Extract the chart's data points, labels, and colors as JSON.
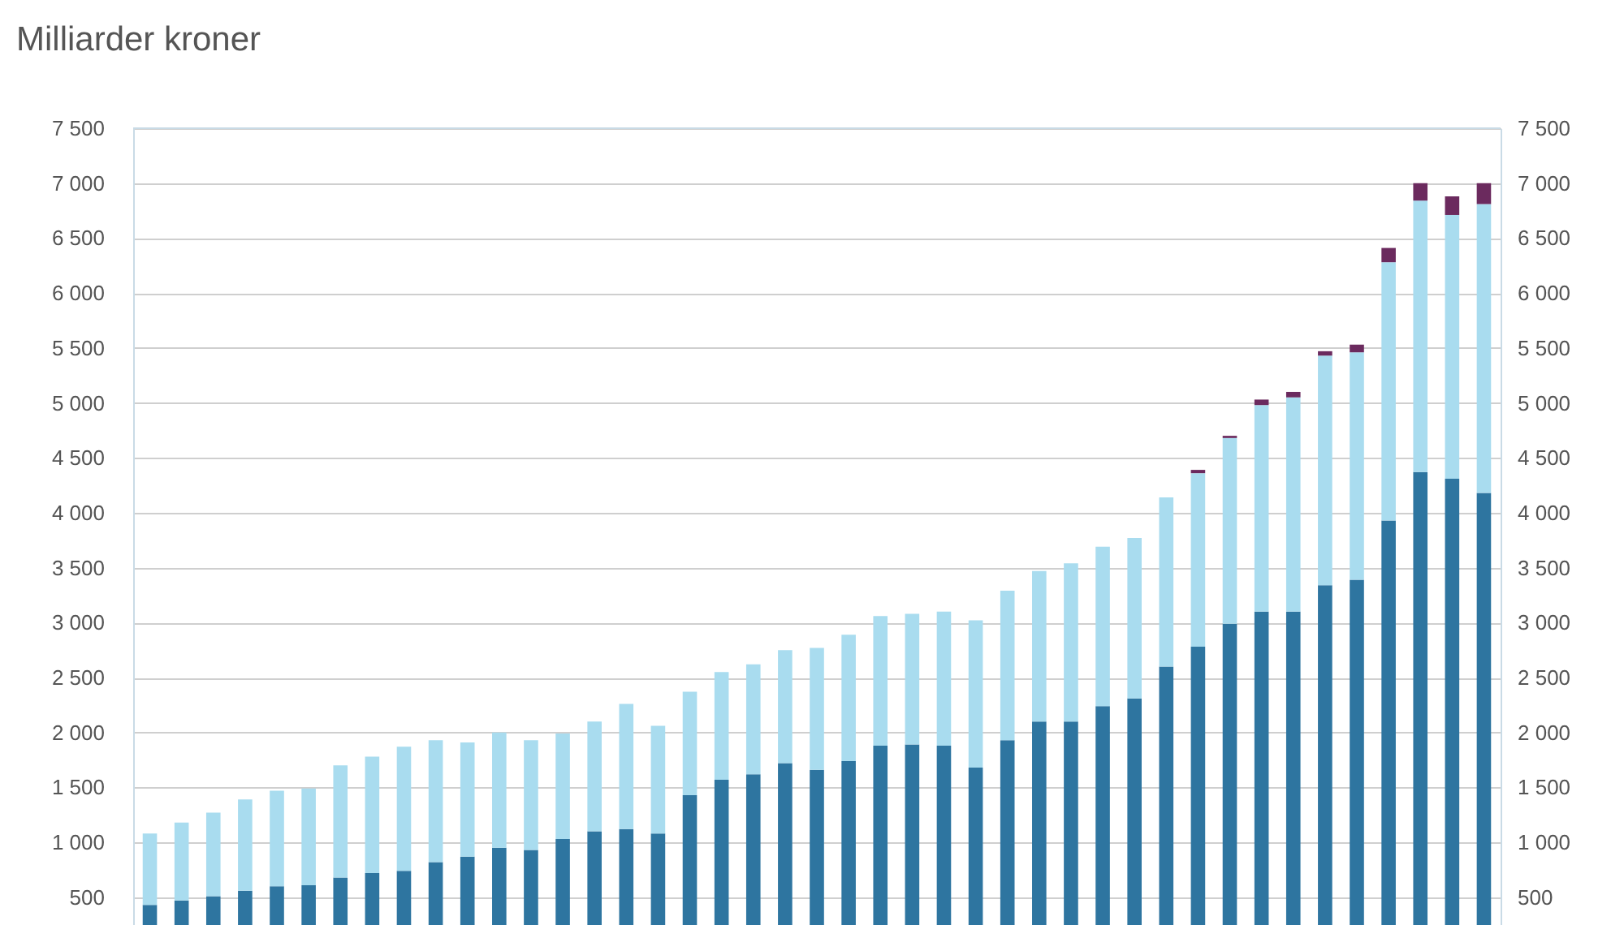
{
  "chart_data": {
    "type": "bar",
    "title": "Milliarder kroner",
    "stacked": true,
    "categories": [
      null,
      null,
      null,
      null,
      null,
      null,
      null,
      null,
      null,
      null,
      null,
      null,
      null,
      null,
      null,
      null,
      null,
      null,
      null,
      null,
      null,
      null,
      null,
      null,
      null,
      null,
      null,
      null,
      null,
      null,
      null,
      null,
      null,
      null,
      null,
      null,
      null,
      null,
      null,
      null,
      null,
      null,
      null
    ],
    "series": [
      {
        "color": "#2e75a0",
        "values": [
          430,
          470,
          510,
          560,
          600,
          610,
          680,
          720,
          740,
          820,
          870,
          950,
          930,
          1030,
          1100,
          1120,
          1080,
          1430,
          1570,
          1620,
          1720,
          1660,
          1740,
          1880,
          1890,
          1880,
          1680,
          1930,
          2100,
          2100,
          2240,
          2310,
          2600,
          2780,
          2990,
          3100,
          3100,
          3340,
          3390,
          3930,
          4370,
          4310,
          4180
        ]
      },
      {
        "color": "#a9dcef",
        "values": [
          650,
          710,
          760,
          830,
          870,
          880,
          1020,
          1060,
          1130,
          1110,
          1040,
          1050,
          1000,
          960,
          1000,
          1140,
          980,
          940,
          980,
          1000,
          1030,
          1110,
          1150,
          1180,
          1190,
          1220,
          1340,
          1360,
          1370,
          1440,
          1450,
          1460,
          1540,
          1580,
          1690,
          1880,
          1950,
          2090,
          2070,
          2350,
          2470,
          2400,
          2630
        ]
      },
      {
        "color": "#6b2a5e",
        "values": [
          null,
          null,
          null,
          null,
          null,
          null,
          null,
          null,
          null,
          null,
          null,
          null,
          null,
          null,
          null,
          null,
          null,
          null,
          null,
          null,
          null,
          null,
          null,
          null,
          null,
          null,
          null,
          null,
          null,
          null,
          null,
          null,
          null,
          30,
          20,
          50,
          50,
          40,
          70,
          130,
          160,
          170,
          190
        ]
      }
    ],
    "ylim": [
      0,
      7500
    ],
    "yticks": [
      {
        "value": 500,
        "label": "500"
      },
      {
        "value": 1000,
        "label": "1 000"
      },
      {
        "value": 1500,
        "label": "1 500"
      },
      {
        "value": 2000,
        "label": "2 000"
      },
      {
        "value": 2500,
        "label": "2 500"
      },
      {
        "value": 3000,
        "label": "3 000"
      },
      {
        "value": 3500,
        "label": "3 500"
      },
      {
        "value": 4000,
        "label": "4 000"
      },
      {
        "value": 4500,
        "label": "4 500"
      },
      {
        "value": 5000,
        "label": "5 000"
      },
      {
        "value": 5500,
        "label": "5 500"
      },
      {
        "value": 6000,
        "label": "6 000"
      },
      {
        "value": 6500,
        "label": "6 500"
      },
      {
        "value": 7000,
        "label": "7 000"
      },
      {
        "value": 7500,
        "label": "7 500"
      }
    ],
    "y2lim": [
      0,
      7500
    ],
    "y2ticks": [
      {
        "value": 500,
        "label": "500"
      },
      {
        "value": 1000,
        "label": "1 000"
      },
      {
        "value": 1500,
        "label": "1 500"
      },
      {
        "value": 2000,
        "label": "2 000"
      },
      {
        "value": 2500,
        "label": "2 500"
      },
      {
        "value": 3000,
        "label": "3 000"
      },
      {
        "value": 3500,
        "label": "3 500"
      },
      {
        "value": 4000,
        "label": "4 000"
      },
      {
        "value": 4500,
        "label": "4 500"
      },
      {
        "value": 5000,
        "label": "5 000"
      },
      {
        "value": 5500,
        "label": "5 500"
      },
      {
        "value": 6000,
        "label": "6 000"
      },
      {
        "value": 6500,
        "label": "6 500"
      },
      {
        "value": 7000,
        "label": "7 000"
      },
      {
        "value": 7500,
        "label": "7 500"
      }
    ],
    "grid": "y",
    "legend": false
  }
}
